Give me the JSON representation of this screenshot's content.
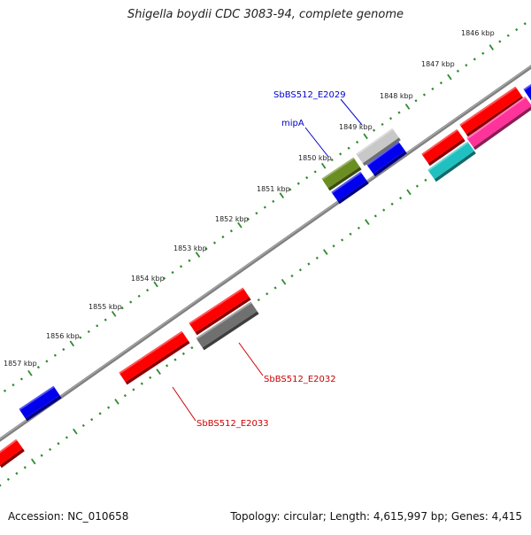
{
  "title": "Shigella boydii CDC 3083-94, complete genome",
  "footer": {
    "accession": "Accession: NC_010658",
    "summary": "Topology: circular; Length: 4,615,997 bp; Genes: 4,415"
  },
  "ticks": [
    "1846 kbp",
    "1847 kbp",
    "1848 kbp",
    "1849 kbp",
    "1850 kbp",
    "1851 kbp",
    "1852 kbp",
    "1853 kbp",
    "1854 kbp",
    "1855 kbp",
    "1856 kbp",
    "1857 kbp"
  ],
  "gene_labels": {
    "sbbs512_e2029": "SbBS512_E2029",
    "mipa": "mipA",
    "sbbs512_e2032": "SbBS512_E2032",
    "sbbs512_e2033": "SbBS512_E2033"
  },
  "colors": {
    "backbone": "#808080",
    "tick_green": "#2e8b2e",
    "red": "#ff0000",
    "blue": "#0000ee",
    "olive": "#6b8e23",
    "light_gray": "#c8c8c8",
    "dark_gray": "#707070",
    "cyan": "#20c0c0",
    "magenta": "#ff3399",
    "label_blue": "#0000cc",
    "label_red": "#cc0000"
  }
}
